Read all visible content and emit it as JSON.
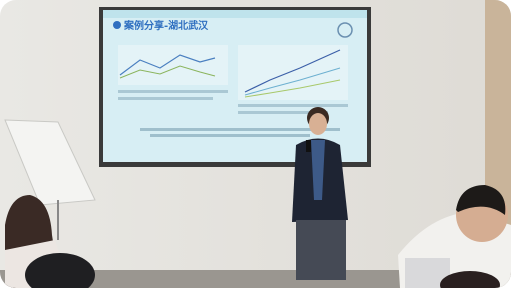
{
  "slide": {
    "title": "案例分享-湖北武汉"
  }
}
